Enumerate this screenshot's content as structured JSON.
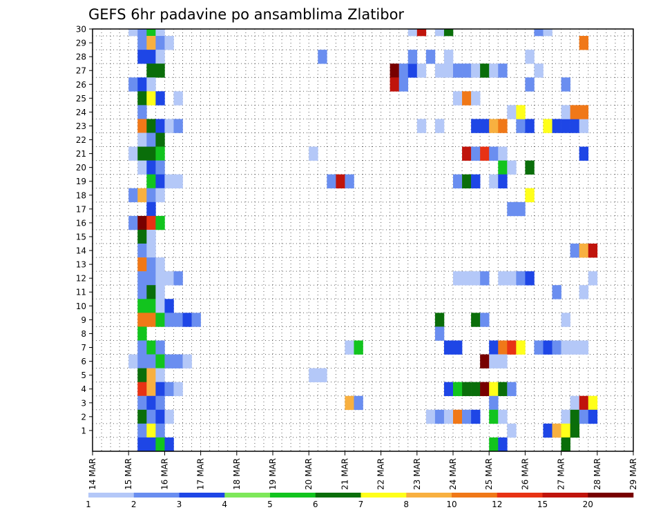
{
  "chart_data": {
    "type": "heatmap",
    "title": "GEFS 6hr padavine po ansamblima Zlatibor",
    "xlabel": "",
    "ylabel": "",
    "x_tick_labels": [
      "14 MAR",
      "15 MAR",
      "16 MAR",
      "17 MAR",
      "18 MAR",
      "19 MAR",
      "20 MAR",
      "21 MAR",
      "22 MAR",
      "23 MAR",
      "24 MAR",
      "25 MAR",
      "26 MAR",
      "27 MAR",
      "28 MAR",
      "29 MAR"
    ],
    "y_tick_labels": [
      "1",
      "2",
      "3",
      "4",
      "5",
      "6",
      "7",
      "8",
      "9",
      "10",
      "11",
      "12",
      "13",
      "14",
      "15",
      "16",
      "17",
      "18",
      "19",
      "20",
      "21",
      "22",
      "23",
      "24",
      "25",
      "26",
      "27",
      "28",
      "29",
      "30"
    ],
    "xlim": [
      "14 MAR",
      "29 MAR"
    ],
    "ylim": [
      0,
      30
    ],
    "grid": true,
    "legend": {
      "position": "bottom",
      "labels": [
        "1",
        "2",
        "3",
        "4",
        "5",
        "6",
        "7",
        "8",
        "10",
        "12",
        "15",
        "20"
      ],
      "colors": [
        "#b4c8f8",
        "#6a8ef0",
        "#1e46e6",
        "#7ee85a",
        "#12c41e",
        "#0a6e0a",
        "#ffff1a",
        "#f8b040",
        "#f07818",
        "#e83214",
        "#c0140c",
        "#780000"
      ]
    },
    "cells_note_columns_every_6h_from_14MAR00": "t = 6h step index, y = ensemble member, v = precipitation mm",
    "cells": [
      {
        "t": 4,
        "y": 30,
        "v": 1
      },
      {
        "t": 5,
        "y": 30,
        "v": 2
      },
      {
        "t": 6,
        "y": 30,
        "v": 5
      },
      {
        "t": 7,
        "y": 30,
        "v": 1
      },
      {
        "t": 5,
        "y": 29,
        "v": 2
      },
      {
        "t": 6,
        "y": 29,
        "v": 8
      },
      {
        "t": 7,
        "y": 29,
        "v": 2
      },
      {
        "t": 8,
        "y": 29,
        "v": 1
      },
      {
        "t": 5,
        "y": 28,
        "v": 3
      },
      {
        "t": 6,
        "y": 28,
        "v": 3
      },
      {
        "t": 7,
        "y": 28,
        "v": 1
      },
      {
        "t": 6,
        "y": 27,
        "v": 6
      },
      {
        "t": 7,
        "y": 27,
        "v": 6
      },
      {
        "t": 4,
        "y": 26,
        "v": 2
      },
      {
        "t": 5,
        "y": 26,
        "v": 3
      },
      {
        "t": 6,
        "y": 26,
        "v": 1
      },
      {
        "t": 5,
        "y": 25,
        "v": 6
      },
      {
        "t": 6,
        "y": 25,
        "v": 7
      },
      {
        "t": 7,
        "y": 25,
        "v": 3
      },
      {
        "t": 9,
        "y": 25,
        "v": 1
      },
      {
        "t": 5,
        "y": 24,
        "v": 2
      },
      {
        "t": 5,
        "y": 23,
        "v": 10
      },
      {
        "t": 6,
        "y": 23,
        "v": 6
      },
      {
        "t": 7,
        "y": 23,
        "v": 3
      },
      {
        "t": 8,
        "y": 23,
        "v": 1
      },
      {
        "t": 9,
        "y": 23,
        "v": 2
      },
      {
        "t": 5,
        "y": 22,
        "v": 1
      },
      {
        "t": 6,
        "y": 22,
        "v": 2
      },
      {
        "t": 7,
        "y": 22,
        "v": 6
      },
      {
        "t": 4,
        "y": 21,
        "v": 1
      },
      {
        "t": 5,
        "y": 21,
        "v": 6
      },
      {
        "t": 6,
        "y": 21,
        "v": 6
      },
      {
        "t": 7,
        "y": 21,
        "v": 5
      },
      {
        "t": 5,
        "y": 20,
        "v": 1
      },
      {
        "t": 6,
        "y": 20,
        "v": 3
      },
      {
        "t": 7,
        "y": 20,
        "v": 2
      },
      {
        "t": 6,
        "y": 19,
        "v": 5
      },
      {
        "t": 7,
        "y": 19,
        "v": 3
      },
      {
        "t": 8,
        "y": 19,
        "v": 1
      },
      {
        "t": 9,
        "y": 19,
        "v": 1
      },
      {
        "t": 4,
        "y": 18,
        "v": 2
      },
      {
        "t": 5,
        "y": 18,
        "v": 8
      },
      {
        "t": 6,
        "y": 18,
        "v": 2
      },
      {
        "t": 7,
        "y": 18,
        "v": 1
      },
      {
        "t": 6,
        "y": 17,
        "v": 3
      },
      {
        "t": 4,
        "y": 16,
        "v": 2
      },
      {
        "t": 5,
        "y": 16,
        "v": 20
      },
      {
        "t": 6,
        "y": 16,
        "v": 12
      },
      {
        "t": 7,
        "y": 16,
        "v": 5
      },
      {
        "t": 5,
        "y": 15,
        "v": 6
      },
      {
        "t": 6,
        "y": 15,
        "v": 1
      },
      {
        "t": 5,
        "y": 14,
        "v": 2
      },
      {
        "t": 6,
        "y": 14,
        "v": 1
      },
      {
        "t": 5,
        "y": 13,
        "v": 10
      },
      {
        "t": 6,
        "y": 13,
        "v": 2
      },
      {
        "t": 7,
        "y": 13,
        "v": 1
      },
      {
        "t": 5,
        "y": 12,
        "v": 2
      },
      {
        "t": 6,
        "y": 12,
        "v": 2
      },
      {
        "t": 7,
        "y": 12,
        "v": 1
      },
      {
        "t": 8,
        "y": 12,
        "v": 1
      },
      {
        "t": 9,
        "y": 12,
        "v": 2
      },
      {
        "t": 5,
        "y": 11,
        "v": 2
      },
      {
        "t": 6,
        "y": 11,
        "v": 6
      },
      {
        "t": 7,
        "y": 11,
        "v": 1
      },
      {
        "t": 5,
        "y": 10,
        "v": 5
      },
      {
        "t": 6,
        "y": 10,
        "v": 5
      },
      {
        "t": 7,
        "y": 10,
        "v": 1
      },
      {
        "t": 8,
        "y": 10,
        "v": 3
      },
      {
        "t": 5,
        "y": 9,
        "v": 10
      },
      {
        "t": 6,
        "y": 9,
        "v": 10
      },
      {
        "t": 7,
        "y": 9,
        "v": 5
      },
      {
        "t": 8,
        "y": 9,
        "v": 2
      },
      {
        "t": 9,
        "y": 9,
        "v": 2
      },
      {
        "t": 10,
        "y": 9,
        "v": 3
      },
      {
        "t": 11,
        "y": 9,
        "v": 2
      },
      {
        "t": 5,
        "y": 8,
        "v": 5
      },
      {
        "t": 5,
        "y": 7,
        "v": 2
      },
      {
        "t": 6,
        "y": 7,
        "v": 5
      },
      {
        "t": 7,
        "y": 7,
        "v": 2
      },
      {
        "t": 4,
        "y": 6,
        "v": 1
      },
      {
        "t": 5,
        "y": 6,
        "v": 2
      },
      {
        "t": 6,
        "y": 6,
        "v": 2
      },
      {
        "t": 7,
        "y": 6,
        "v": 5
      },
      {
        "t": 8,
        "y": 6,
        "v": 2
      },
      {
        "t": 9,
        "y": 6,
        "v": 2
      },
      {
        "t": 10,
        "y": 6,
        "v": 1
      },
      {
        "t": 5,
        "y": 5,
        "v": 6
      },
      {
        "t": 6,
        "y": 5,
        "v": 8
      },
      {
        "t": 7,
        "y": 5,
        "v": 1
      },
      {
        "t": 5,
        "y": 4,
        "v": 12
      },
      {
        "t": 6,
        "y": 4,
        "v": 8
      },
      {
        "t": 7,
        "y": 4,
        "v": 3
      },
      {
        "t": 8,
        "y": 4,
        "v": 2
      },
      {
        "t": 9,
        "y": 4,
        "v": 1
      },
      {
        "t": 5,
        "y": 3,
        "v": 2
      },
      {
        "t": 6,
        "y": 3,
        "v": 3
      },
      {
        "t": 7,
        "y": 3,
        "v": 2
      },
      {
        "t": 5,
        "y": 2,
        "v": 6
      },
      {
        "t": 6,
        "y": 2,
        "v": 2
      },
      {
        "t": 7,
        "y": 2,
        "v": 3
      },
      {
        "t": 8,
        "y": 2,
        "v": 1
      },
      {
        "t": 5,
        "y": 1,
        "v": 2
      },
      {
        "t": 6,
        "y": 1,
        "v": 7
      },
      {
        "t": 7,
        "y": 1,
        "v": 2
      },
      {
        "t": 5,
        "y": 0,
        "v": 3
      },
      {
        "t": 6,
        "y": 0,
        "v": 3
      },
      {
        "t": 7,
        "y": 0,
        "v": 5
      },
      {
        "t": 8,
        "y": 0,
        "v": 3
      },
      {
        "t": 25,
        "y": 28,
        "v": 2
      },
      {
        "t": 24,
        "y": 5,
        "v": 1
      },
      {
        "t": 25,
        "y": 5,
        "v": 1
      },
      {
        "t": 24,
        "y": 21,
        "v": 1
      },
      {
        "t": 26,
        "y": 19,
        "v": 2
      },
      {
        "t": 27,
        "y": 19,
        "v": 15
      },
      {
        "t": 28,
        "y": 19,
        "v": 2
      },
      {
        "t": 28,
        "y": 3,
        "v": 8
      },
      {
        "t": 29,
        "y": 3,
        "v": 2
      },
      {
        "t": 28,
        "y": 7,
        "v": 1
      },
      {
        "t": 29,
        "y": 7,
        "v": 5
      },
      {
        "t": 33,
        "y": 27,
        "v": 20
      },
      {
        "t": 34,
        "y": 27,
        "v": 2
      },
      {
        "t": 35,
        "y": 27,
        "v": 3
      },
      {
        "t": 36,
        "y": 27,
        "v": 1
      },
      {
        "t": 33,
        "y": 26,
        "v": 15
      },
      {
        "t": 34,
        "y": 26,
        "v": 2
      },
      {
        "t": 35,
        "y": 30,
        "v": 1
      },
      {
        "t": 36,
        "y": 30,
        "v": 15
      },
      {
        "t": 38,
        "y": 30,
        "v": 1
      },
      {
        "t": 39,
        "y": 30,
        "v": 6
      },
      {
        "t": 35,
        "y": 28,
        "v": 2
      },
      {
        "t": 37,
        "y": 28,
        "v": 2
      },
      {
        "t": 39,
        "y": 28,
        "v": 1
      },
      {
        "t": 38,
        "y": 27,
        "v": 1
      },
      {
        "t": 39,
        "y": 27,
        "v": 1
      },
      {
        "t": 40,
        "y": 27,
        "v": 2
      },
      {
        "t": 41,
        "y": 27,
        "v": 2
      },
      {
        "t": 42,
        "y": 27,
        "v": 1
      },
      {
        "t": 43,
        "y": 27,
        "v": 6
      },
      {
        "t": 44,
        "y": 27,
        "v": 1
      },
      {
        "t": 45,
        "y": 27,
        "v": 2
      },
      {
        "t": 40,
        "y": 25,
        "v": 1
      },
      {
        "t": 41,
        "y": 25,
        "v": 10
      },
      {
        "t": 42,
        "y": 25,
        "v": 1
      },
      {
        "t": 36,
        "y": 23,
        "v": 1
      },
      {
        "t": 38,
        "y": 23,
        "v": 1
      },
      {
        "t": 42,
        "y": 23,
        "v": 3
      },
      {
        "t": 43,
        "y": 23,
        "v": 3
      },
      {
        "t": 44,
        "y": 23,
        "v": 8
      },
      {
        "t": 45,
        "y": 23,
        "v": 10
      },
      {
        "t": 47,
        "y": 23,
        "v": 2
      },
      {
        "t": 48,
        "y": 23,
        "v": 3
      },
      {
        "t": 41,
        "y": 21,
        "v": 15
      },
      {
        "t": 42,
        "y": 21,
        "v": 2
      },
      {
        "t": 43,
        "y": 21,
        "v": 12
      },
      {
        "t": 44,
        "y": 21,
        "v": 2
      },
      {
        "t": 45,
        "y": 21,
        "v": 1
      },
      {
        "t": 45,
        "y": 20,
        "v": 5
      },
      {
        "t": 46,
        "y": 20,
        "v": 1
      },
      {
        "t": 48,
        "y": 20,
        "v": 6
      },
      {
        "t": 40,
        "y": 19,
        "v": 2
      },
      {
        "t": 41,
        "y": 19,
        "v": 6
      },
      {
        "t": 42,
        "y": 19,
        "v": 3
      },
      {
        "t": 44,
        "y": 19,
        "v": 1
      },
      {
        "t": 45,
        "y": 19,
        "v": 3
      },
      {
        "t": 48,
        "y": 18,
        "v": 7
      },
      {
        "t": 46,
        "y": 17,
        "v": 2
      },
      {
        "t": 47,
        "y": 17,
        "v": 2
      },
      {
        "t": 46,
        "y": 24,
        "v": 1
      },
      {
        "t": 47,
        "y": 24,
        "v": 7
      },
      {
        "t": 48,
        "y": 26,
        "v": 2
      },
      {
        "t": 40,
        "y": 12,
        "v": 1
      },
      {
        "t": 41,
        "y": 12,
        "v": 1
      },
      {
        "t": 42,
        "y": 12,
        "v": 1
      },
      {
        "t": 43,
        "y": 12,
        "v": 2
      },
      {
        "t": 45,
        "y": 12,
        "v": 1
      },
      {
        "t": 46,
        "y": 12,
        "v": 1
      },
      {
        "t": 47,
        "y": 12,
        "v": 2
      },
      {
        "t": 48,
        "y": 12,
        "v": 3
      },
      {
        "t": 38,
        "y": 9,
        "v": 6
      },
      {
        "t": 42,
        "y": 9,
        "v": 6
      },
      {
        "t": 43,
        "y": 9,
        "v": 2
      },
      {
        "t": 38,
        "y": 8,
        "v": 2
      },
      {
        "t": 39,
        "y": 7,
        "v": 3
      },
      {
        "t": 40,
        "y": 7,
        "v": 3
      },
      {
        "t": 44,
        "y": 7,
        "v": 3
      },
      {
        "t": 45,
        "y": 7,
        "v": 10
      },
      {
        "t": 46,
        "y": 7,
        "v": 12
      },
      {
        "t": 47,
        "y": 7,
        "v": 7
      },
      {
        "t": 43,
        "y": 6,
        "v": 20
      },
      {
        "t": 44,
        "y": 6,
        "v": 1
      },
      {
        "t": 45,
        "y": 6,
        "v": 1
      },
      {
        "t": 39,
        "y": 4,
        "v": 3
      },
      {
        "t": 40,
        "y": 4,
        "v": 5
      },
      {
        "t": 41,
        "y": 4,
        "v": 6
      },
      {
        "t": 42,
        "y": 4,
        "v": 6
      },
      {
        "t": 43,
        "y": 4,
        "v": 20
      },
      {
        "t": 44,
        "y": 4,
        "v": 7
      },
      {
        "t": 45,
        "y": 4,
        "v": 6
      },
      {
        "t": 46,
        "y": 4,
        "v": 2
      },
      {
        "t": 44,
        "y": 3,
        "v": 2
      },
      {
        "t": 37,
        "y": 2,
        "v": 1
      },
      {
        "t": 38,
        "y": 2,
        "v": 2
      },
      {
        "t": 39,
        "y": 2,
        "v": 1
      },
      {
        "t": 40,
        "y": 2,
        "v": 10
      },
      {
        "t": 41,
        "y": 2,
        "v": 2
      },
      {
        "t": 42,
        "y": 2,
        "v": 3
      },
      {
        "t": 44,
        "y": 2,
        "v": 5
      },
      {
        "t": 45,
        "y": 2,
        "v": 1
      },
      {
        "t": 46,
        "y": 1,
        "v": 1
      },
      {
        "t": 44,
        "y": 0,
        "v": 5
      },
      {
        "t": 45,
        "y": 0,
        "v": 3
      },
      {
        "t": 49,
        "y": 30,
        "v": 2
      },
      {
        "t": 50,
        "y": 30,
        "v": 1
      },
      {
        "t": 49,
        "y": 27,
        "v": 1
      },
      {
        "t": 48,
        "y": 28,
        "v": 1
      },
      {
        "t": 50,
        "y": 23,
        "v": 7
      },
      {
        "t": 51,
        "y": 23,
        "v": 3
      },
      {
        "t": 52,
        "y": 23,
        "v": 3
      },
      {
        "t": 53,
        "y": 23,
        "v": 3
      },
      {
        "t": 54,
        "y": 23,
        "v": 1
      },
      {
        "t": 52,
        "y": 24,
        "v": 1
      },
      {
        "t": 53,
        "y": 24,
        "v": 10
      },
      {
        "t": 54,
        "y": 24,
        "v": 10
      },
      {
        "t": 54,
        "y": 29,
        "v": 10
      },
      {
        "t": 52,
        "y": 26,
        "v": 2
      },
      {
        "t": 54,
        "y": 21,
        "v": 3
      },
      {
        "t": 53,
        "y": 14,
        "v": 2
      },
      {
        "t": 54,
        "y": 14,
        "v": 8
      },
      {
        "t": 55,
        "y": 14,
        "v": 15
      },
      {
        "t": 55,
        "y": 12,
        "v": 1
      },
      {
        "t": 51,
        "y": 11,
        "v": 2
      },
      {
        "t": 54,
        "y": 11,
        "v": 1
      },
      {
        "t": 52,
        "y": 9,
        "v": 1
      },
      {
        "t": 49,
        "y": 7,
        "v": 2
      },
      {
        "t": 50,
        "y": 7,
        "v": 3
      },
      {
        "t": 51,
        "y": 7,
        "v": 2
      },
      {
        "t": 52,
        "y": 7,
        "v": 1
      },
      {
        "t": 53,
        "y": 7,
        "v": 1
      },
      {
        "t": 54,
        "y": 7,
        "v": 1
      },
      {
        "t": 53,
        "y": 3,
        "v": 1
      },
      {
        "t": 54,
        "y": 3,
        "v": 15
      },
      {
        "t": 55,
        "y": 3,
        "v": 7
      },
      {
        "t": 52,
        "y": 2,
        "v": 1
      },
      {
        "t": 53,
        "y": 2,
        "v": 6
      },
      {
        "t": 54,
        "y": 2,
        "v": 2
      },
      {
        "t": 55,
        "y": 2,
        "v": 3
      },
      {
        "t": 50,
        "y": 1,
        "v": 3
      },
      {
        "t": 51,
        "y": 1,
        "v": 8
      },
      {
        "t": 52,
        "y": 1,
        "v": 7
      },
      {
        "t": 53,
        "y": 1,
        "v": 6
      },
      {
        "t": 52,
        "y": 0,
        "v": 6
      }
    ]
  }
}
